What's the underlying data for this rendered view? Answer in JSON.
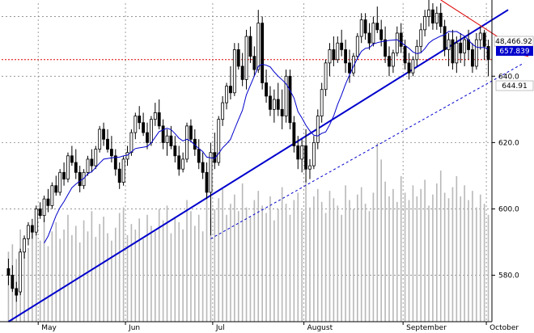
{
  "chart_data": {
    "type": "candlestick",
    "title": "",
    "xlabel": "",
    "ylabel": "",
    "ylim": [
      566,
      662
    ],
    "grid": true,
    "y_ticks": [
      580,
      600,
      620,
      640
    ],
    "y_tick_labels": [
      "580.0",
      "600.0",
      "620.0",
      "640.0"
    ],
    "months": [
      {
        "label": "May",
        "index": 8
      },
      {
        "label": "Jun",
        "index": 30
      },
      {
        "label": "Jul",
        "index": 52
      },
      {
        "label": "August",
        "index": 75
      },
      {
        "label": "September",
        "index": 100
      },
      {
        "label": "October",
        "index": 121
      }
    ],
    "candles": [
      [
        582,
        585,
        577,
        580
      ],
      [
        580,
        583,
        575,
        576
      ],
      [
        576,
        578,
        572,
        574
      ],
      [
        575,
        588,
        574,
        587
      ],
      [
        587,
        592,
        585,
        591
      ],
      [
        591,
        596,
        589,
        595
      ],
      [
        595,
        597,
        591,
        593
      ],
      [
        593,
        601,
        592,
        600
      ],
      [
        600,
        602,
        597,
        598
      ],
      [
        598,
        604,
        596,
        603
      ],
      [
        603,
        606,
        599,
        601
      ],
      [
        601,
        608,
        600,
        607
      ],
      [
        607,
        610,
        604,
        605
      ],
      [
        605,
        612,
        604,
        611
      ],
      [
        611,
        614,
        607,
        609
      ],
      [
        609,
        617,
        608,
        616
      ],
      [
        616,
        619,
        613,
        614
      ],
      [
        614,
        618,
        609,
        611
      ],
      [
        611,
        613,
        605,
        607
      ],
      [
        607,
        612,
        606,
        611
      ],
      [
        611,
        616,
        610,
        615
      ],
      [
        615,
        618,
        611,
        613
      ],
      [
        613,
        619,
        612,
        618
      ],
      [
        618,
        625,
        617,
        624
      ],
      [
        624,
        626,
        619,
        621
      ],
      [
        621,
        624,
        617,
        618
      ],
      [
        618,
        622,
        614,
        616
      ],
      [
        616,
        618,
        610,
        612
      ],
      [
        612,
        614,
        606,
        608
      ],
      [
        608,
        616,
        607,
        615
      ],
      [
        615,
        619,
        613,
        617
      ],
      [
        617,
        624,
        616,
        623
      ],
      [
        623,
        629,
        621,
        628
      ],
      [
        628,
        631,
        624,
        626
      ],
      [
        626,
        629,
        622,
        623
      ],
      [
        623,
        626,
        618,
        620
      ],
      [
        620,
        628,
        619,
        627
      ],
      [
        627,
        632,
        625,
        629
      ],
      [
        629,
        633,
        624,
        625
      ],
      [
        625,
        627,
        618,
        620
      ],
      [
        620,
        624,
        616,
        622
      ],
      [
        622,
        625,
        618,
        619
      ],
      [
        619,
        622,
        614,
        616
      ],
      [
        616,
        619,
        610,
        612
      ],
      [
        612,
        617,
        611,
        615
      ],
      [
        615,
        626,
        614,
        625
      ],
      [
        625,
        627,
        620,
        621
      ],
      [
        621,
        624,
        616,
        618
      ],
      [
        618,
        621,
        612,
        614
      ],
      [
        614,
        617,
        609,
        611
      ],
      [
        611,
        614,
        603,
        605
      ],
      [
        605,
        620,
        592,
        617
      ],
      [
        617,
        623,
        612,
        614
      ],
      [
        614,
        628,
        613,
        627
      ],
      [
        627,
        634,
        625,
        632
      ],
      [
        632,
        638,
        630,
        637
      ],
      [
        637,
        643,
        633,
        635
      ],
      [
        635,
        650,
        634,
        648
      ],
      [
        648,
        650,
        642,
        643
      ],
      [
        643,
        647,
        637,
        639
      ],
      [
        639,
        654,
        636,
        652
      ],
      [
        652,
        655,
        644,
        646
      ],
      [
        646,
        649,
        640,
        642
      ],
      [
        642,
        660,
        641,
        656
      ],
      [
        656,
        658,
        636,
        638
      ],
      [
        638,
        642,
        632,
        634
      ],
      [
        634,
        637,
        628,
        630
      ],
      [
        630,
        636,
        626,
        633
      ],
      [
        633,
        638,
        628,
        630
      ],
      [
        630,
        636,
        624,
        628
      ],
      [
        628,
        642,
        626,
        640
      ],
      [
        640,
        642,
        624,
        626
      ],
      [
        626,
        628,
        617,
        619
      ],
      [
        619,
        622,
        612,
        615
      ],
      [
        615,
        621,
        611,
        619
      ],
      [
        619,
        624,
        608,
        612
      ],
      [
        612,
        615,
        609,
        613
      ],
      [
        613,
        622,
        612,
        620
      ],
      [
        620,
        630,
        618,
        628
      ],
      [
        628,
        638,
        626,
        636
      ],
      [
        636,
        645,
        634,
        644
      ],
      [
        644,
        650,
        640,
        648
      ],
      [
        648,
        652,
        643,
        645
      ],
      [
        645,
        652,
        644,
        650
      ],
      [
        650,
        654,
        646,
        648
      ],
      [
        648,
        651,
        641,
        644
      ],
      [
        644,
        648,
        638,
        641
      ],
      [
        641,
        647,
        640,
        646
      ],
      [
        646,
        653,
        645,
        652
      ],
      [
        652,
        659,
        650,
        657
      ],
      [
        657,
        659,
        651,
        653
      ],
      [
        653,
        656,
        648,
        650
      ],
      [
        650,
        658,
        649,
        656
      ],
      [
        656,
        661,
        653,
        654
      ],
      [
        654,
        657,
        649,
        651
      ],
      [
        651,
        655,
        644,
        646
      ],
      [
        646,
        649,
        640,
        643
      ],
      [
        643,
        648,
        641,
        647
      ],
      [
        647,
        655,
        646,
        653
      ],
      [
        653,
        656,
        647,
        649
      ],
      [
        649,
        651,
        642,
        644
      ],
      [
        644,
        647,
        639,
        641
      ],
      [
        641,
        646,
        640,
        645
      ],
      [
        645,
        651,
        643,
        649
      ],
      [
        649,
        656,
        647,
        654
      ],
      [
        654,
        660,
        652,
        658
      ],
      [
        658,
        663,
        655,
        660
      ],
      [
        660,
        662,
        654,
        656
      ],
      [
        656,
        661,
        654,
        659
      ],
      [
        659,
        662,
        653,
        655
      ],
      [
        655,
        657,
        646,
        648
      ],
      [
        648,
        653,
        643,
        651
      ],
      [
        651,
        654,
        642,
        644
      ],
      [
        644,
        652,
        641,
        650
      ],
      [
        650,
        653,
        644,
        647
      ],
      [
        647,
        652,
        643,
        651
      ],
      [
        651,
        654,
        645,
        648
      ],
      [
        648,
        650,
        641,
        643
      ],
      [
        643,
        653,
        642,
        651
      ],
      [
        651,
        655,
        648,
        653
      ],
      [
        653,
        654,
        645,
        649
      ],
      [
        649,
        651,
        640,
        645
      ]
    ],
    "volumes": [
      38,
      42,
      34,
      50,
      46,
      40,
      52,
      48,
      44,
      56,
      41,
      49,
      54,
      45,
      50,
      58,
      47,
      52,
      43,
      55,
      49,
      60,
      46,
      53,
      57,
      48,
      44,
      51,
      59,
      62,
      47,
      53,
      50,
      56,
      45,
      58,
      52,
      49,
      61,
      55,
      63,
      48,
      57,
      54,
      50,
      66,
      60,
      52,
      58,
      49,
      70,
      56,
      61,
      67,
      72,
      58,
      64,
      69,
      60,
      75,
      62,
      57,
      66,
      71,
      63,
      59,
      68,
      55,
      61,
      73,
      64,
      58,
      66,
      70,
      60,
      77,
      62,
      68,
      72,
      65,
      59,
      71,
      67,
      63,
      58,
      74,
      66,
      61,
      69,
      73,
      64,
      60,
      70,
      97,
      88,
      76,
      68,
      72,
      65,
      79,
      70,
      66,
      74,
      68,
      72,
      77,
      63,
      69,
      75,
      82,
      70,
      67,
      73,
      79,
      68,
      74,
      66,
      71,
      62,
      69,
      64,
      58
    ],
    "series": [
      {
        "name": "",
        "type": "moving-average",
        "color": "#0000cc"
      }
    ],
    "trendlines": [
      {
        "style": "solid",
        "color": "#0000cc",
        "from": {
          "index": 0,
          "value": 566
        },
        "to": {
          "index": 126,
          "value": 660
        }
      },
      {
        "style": "dashed",
        "color": "#0000cc",
        "from": {
          "index": 51,
          "value": 591
        },
        "to": {
          "index": 130,
          "value": 644
        }
      },
      {
        "style": "solid-arrow",
        "color": "#dd0000",
        "from": {
          "index": 109,
          "value": 663
        },
        "to": {
          "index": 131,
          "value": 646
        }
      }
    ],
    "annotations": {
      "hline_value": 645,
      "hline_label": "644.91",
      "price_badge_top": "48,466.92",
      "price_badge_blue": "657.839",
      "price_badge_last": "644.91"
    },
    "colors": {
      "candle": "#000000",
      "volume": "#b8b8b8",
      "moving_average": "#0000cc",
      "trendline": "#0000cc",
      "red_trend": "#dd0000",
      "hline": "#dd0000",
      "badge_blue_bg": "#0000cc"
    }
  }
}
